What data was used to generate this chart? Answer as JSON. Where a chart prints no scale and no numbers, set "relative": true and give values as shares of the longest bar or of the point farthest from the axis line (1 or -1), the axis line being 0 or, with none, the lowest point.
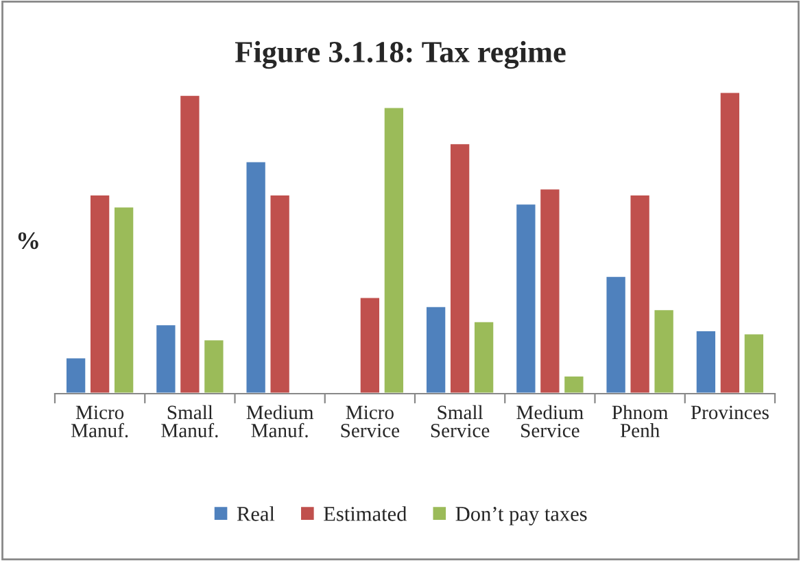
{
  "chart_data": {
    "type": "bar",
    "title": "Figure 3.1.18: Tax regime",
    "ylabel": "%",
    "relative": true,
    "categories": [
      "Micro\nManuf.",
      "Small\nManuf.",
      "Medium\nManuf.",
      "Micro\nService",
      "Small\nService",
      "Medium\nService",
      "Phnom\nPenh",
      "Provinces"
    ],
    "series": [
      {
        "name": "Real",
        "color": "#4f81bd",
        "values": [
          0.12,
          0.23,
          0.77,
          null,
          0.29,
          0.63,
          0.39,
          0.21
        ]
      },
      {
        "name": "Estimated",
        "color": "#c0504d",
        "values": [
          0.66,
          0.99,
          0.66,
          0.32,
          0.83,
          0.68,
          0.66,
          1.0
        ]
      },
      {
        "name": "Don’t pay taxes",
        "color": "#9bbb59",
        "values": [
          0.62,
          0.18,
          null,
          0.95,
          0.24,
          0.06,
          0.28,
          0.2
        ]
      }
    ],
    "legend": "bottom",
    "grid": false
  }
}
